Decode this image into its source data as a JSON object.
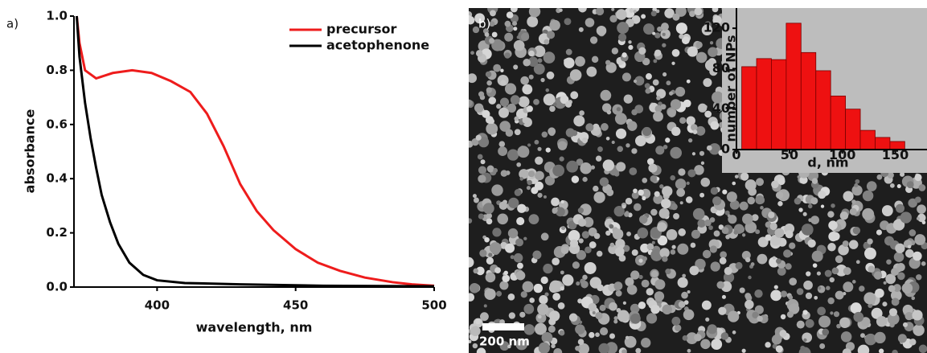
{
  "chart_data": [
    {
      "type": "line",
      "panel_label": "a)",
      "x_label": "wavelength, nm",
      "y_label": "absorbance",
      "xlim": [
        370,
        500
      ],
      "xticks": [
        400,
        450,
        500
      ],
      "ylim": [
        0,
        1
      ],
      "yticks": [
        {
          "value": 0,
          "label": "0.0"
        },
        0.2,
        0.4,
        0.6,
        0.8,
        {
          "value": 1,
          "label": "1.0"
        }
      ],
      "series": [
        {
          "name": "precursor",
          "color": "#ee1c1c",
          "x": [
            371,
            372,
            374,
            378,
            384,
            391,
            398,
            405,
            412,
            418,
            424,
            430,
            436,
            442,
            450,
            458,
            466,
            475,
            485,
            492,
            500
          ],
          "values": [
            1.0,
            0.9,
            0.8,
            0.77,
            0.79,
            0.8,
            0.79,
            0.76,
            0.72,
            0.64,
            0.52,
            0.38,
            0.28,
            0.21,
            0.14,
            0.09,
            0.06,
            0.035,
            0.018,
            0.01,
            0.005
          ]
        },
        {
          "name": "acetophenone",
          "color": "#000000",
          "x": [
            371,
            372,
            374,
            376,
            378,
            380,
            383,
            386,
            390,
            395,
            400,
            410,
            430,
            460,
            500
          ],
          "values": [
            1.0,
            0.85,
            0.68,
            0.55,
            0.44,
            0.34,
            0.24,
            0.16,
            0.09,
            0.045,
            0.025,
            0.015,
            0.01,
            0.005,
            0.003
          ]
        }
      ]
    },
    {
      "type": "histogram",
      "panel_label": "b)",
      "scale_bar": "200 nm",
      "x_label": "d, nm",
      "y_label": "number of NPs",
      "xlim": [
        0,
        180
      ],
      "xticks": [
        0,
        50,
        100,
        150
      ],
      "ylim": [
        0,
        140
      ],
      "yticks": [
        0,
        40,
        80,
        120
      ],
      "color": "#ee1111",
      "bins": [
        5,
        19,
        33,
        47,
        61,
        75,
        89,
        103,
        117,
        131,
        145,
        159
      ],
      "values": [
        82,
        90,
        89,
        125,
        96,
        78,
        53,
        40,
        19,
        12,
        8
      ]
    }
  ]
}
